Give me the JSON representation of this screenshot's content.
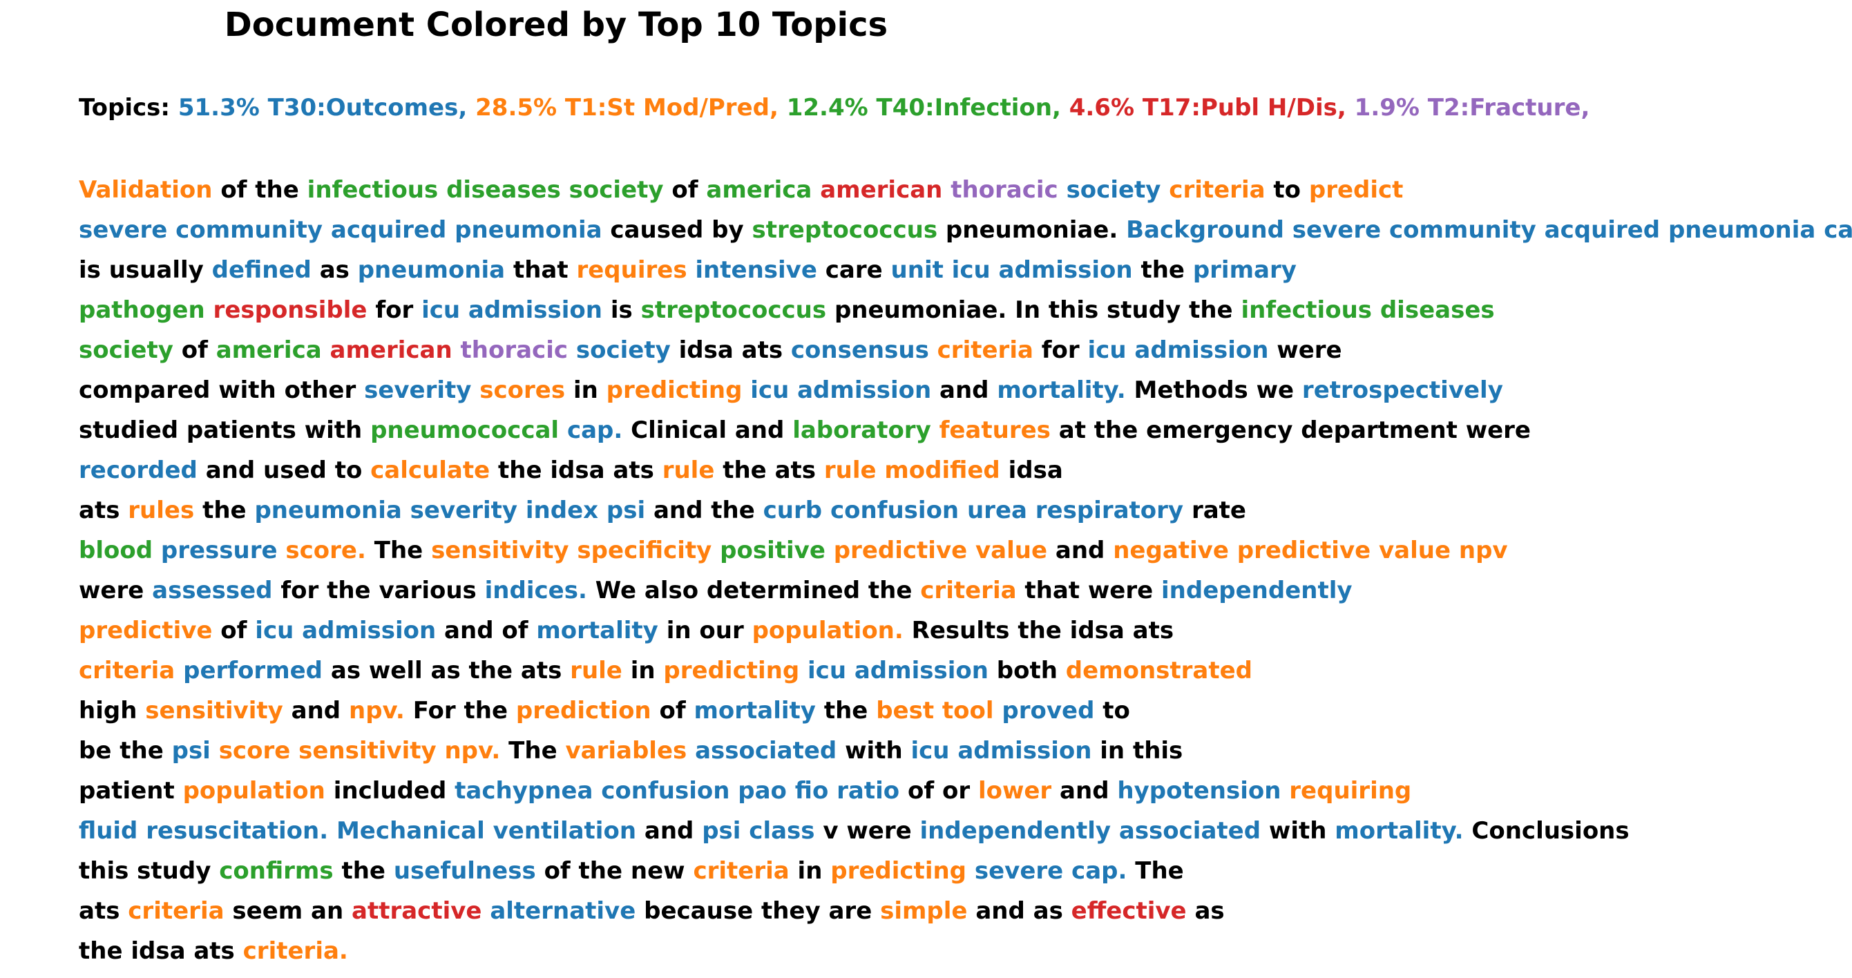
{
  "title": "Document Colored by Top 10 Topics",
  "colors": {
    "T30": "#1f77b4",
    "T1": "#ff7f0e",
    "T40": "#2ca02c",
    "T17": "#d62728",
    "T2": "#9467bd",
    "none": "#000000"
  },
  "topics_label": "Topics:",
  "topics": [
    {
      "key": "T30",
      "text": "51.3% T30:Outcomes,"
    },
    {
      "key": "T1",
      "text": "28.5% T1:St Mod/Pred,"
    },
    {
      "key": "T40",
      "text": "12.4% T40:Infection,"
    },
    {
      "key": "T17",
      "text": "4.6% T17:Publ H/Dis,"
    },
    {
      "key": "T2",
      "text": "1.9% T2:Fracture,"
    }
  ],
  "document_lines": [
    [
      [
        "Validation",
        "T1"
      ],
      [
        "of the",
        "none"
      ],
      [
        "infectious diseases society",
        "T40"
      ],
      [
        "of",
        "none"
      ],
      [
        "america",
        "T40"
      ],
      [
        "american",
        "T17"
      ],
      [
        "thoracic",
        "T2"
      ],
      [
        "society",
        "T30"
      ],
      [
        "criteria",
        "T1"
      ],
      [
        "to",
        "none"
      ],
      [
        "predict",
        "T1"
      ]
    ],
    [
      [
        "severe community acquired pneumonia",
        "T30"
      ],
      [
        "caused by",
        "none"
      ],
      [
        "streptococcus",
        "T40"
      ],
      [
        "pneumoniae.",
        "none"
      ],
      [
        "Background severe community acquired pneumonia cap",
        "T30"
      ]
    ],
    [
      [
        "is usually",
        "none"
      ],
      [
        "defined",
        "T30"
      ],
      [
        "as",
        "none"
      ],
      [
        "pneumonia",
        "T30"
      ],
      [
        "that",
        "none"
      ],
      [
        "requires",
        "T1"
      ],
      [
        "intensive",
        "T30"
      ],
      [
        "care",
        "none"
      ],
      [
        "unit icu admission",
        "T30"
      ],
      [
        "the",
        "none"
      ],
      [
        "primary",
        "T30"
      ]
    ],
    [
      [
        "pathogen",
        "T40"
      ],
      [
        "responsible",
        "T17"
      ],
      [
        "for",
        "none"
      ],
      [
        "icu admission",
        "T30"
      ],
      [
        "is",
        "none"
      ],
      [
        "streptococcus",
        "T40"
      ],
      [
        "pneumoniae. In this study the",
        "none"
      ],
      [
        "infectious diseases",
        "T40"
      ]
    ],
    [
      [
        "society",
        "T40"
      ],
      [
        "of",
        "none"
      ],
      [
        "america",
        "T40"
      ],
      [
        "american",
        "T17"
      ],
      [
        "thoracic",
        "T2"
      ],
      [
        "society",
        "T30"
      ],
      [
        "idsa ats",
        "none"
      ],
      [
        "consensus",
        "T30"
      ],
      [
        "criteria",
        "T1"
      ],
      [
        "for",
        "none"
      ],
      [
        "icu admission",
        "T30"
      ],
      [
        "were",
        "none"
      ]
    ],
    [
      [
        "compared with other",
        "none"
      ],
      [
        "severity",
        "T30"
      ],
      [
        "scores",
        "T1"
      ],
      [
        "in",
        "none"
      ],
      [
        "predicting",
        "T1"
      ],
      [
        "icu admission",
        "T30"
      ],
      [
        "and",
        "none"
      ],
      [
        "mortality.",
        "T30"
      ],
      [
        "Methods we",
        "none"
      ],
      [
        "retrospectively",
        "T30"
      ]
    ],
    [
      [
        "studied patients with",
        "none"
      ],
      [
        "pneumococcal",
        "T40"
      ],
      [
        "cap.",
        "T30"
      ],
      [
        "Clinical and",
        "none"
      ],
      [
        "laboratory",
        "T40"
      ],
      [
        "features",
        "T1"
      ],
      [
        "at the emergency department were",
        "none"
      ]
    ],
    [
      [
        "recorded",
        "T30"
      ],
      [
        "and used to",
        "none"
      ],
      [
        "calculate",
        "T1"
      ],
      [
        "the idsa ats",
        "none"
      ],
      [
        "rule",
        "T1"
      ],
      [
        "the ats",
        "none"
      ],
      [
        "rule modified",
        "T1"
      ],
      [
        "idsa",
        "none"
      ]
    ],
    [
      [
        "ats",
        "none"
      ],
      [
        "rules",
        "T1"
      ],
      [
        "the",
        "none"
      ],
      [
        "pneumonia severity index psi",
        "T30"
      ],
      [
        "and the",
        "none"
      ],
      [
        "curb confusion urea respiratory",
        "T30"
      ],
      [
        "rate",
        "none"
      ]
    ],
    [
      [
        "blood",
        "T40"
      ],
      [
        "pressure",
        "T30"
      ],
      [
        "score.",
        "T1"
      ],
      [
        "The",
        "none"
      ],
      [
        "sensitivity specificity",
        "T1"
      ],
      [
        "positive",
        "T40"
      ],
      [
        "predictive value",
        "T1"
      ],
      [
        "and",
        "none"
      ],
      [
        "negative predictive value npv",
        "T1"
      ]
    ],
    [
      [
        "were",
        "none"
      ],
      [
        "assessed",
        "T30"
      ],
      [
        "for the various",
        "none"
      ],
      [
        "indices.",
        "T30"
      ],
      [
        "We also determined the",
        "none"
      ],
      [
        "criteria",
        "T1"
      ],
      [
        "that were",
        "none"
      ],
      [
        "independently",
        "T30"
      ]
    ],
    [
      [
        "predictive",
        "T1"
      ],
      [
        "of",
        "none"
      ],
      [
        "icu admission",
        "T30"
      ],
      [
        "and of",
        "none"
      ],
      [
        "mortality",
        "T30"
      ],
      [
        "in our",
        "none"
      ],
      [
        "population.",
        "T1"
      ],
      [
        "Results the idsa ats",
        "none"
      ]
    ],
    [
      [
        "criteria",
        "T1"
      ],
      [
        "performed",
        "T30"
      ],
      [
        "as well as the ats",
        "none"
      ],
      [
        "rule",
        "T1"
      ],
      [
        "in",
        "none"
      ],
      [
        "predicting",
        "T1"
      ],
      [
        "icu admission",
        "T30"
      ],
      [
        "both",
        "none"
      ],
      [
        "demonstrated",
        "T1"
      ]
    ],
    [
      [
        "high",
        "none"
      ],
      [
        "sensitivity",
        "T1"
      ],
      [
        "and",
        "none"
      ],
      [
        "npv.",
        "T1"
      ],
      [
        "For the",
        "none"
      ],
      [
        "prediction",
        "T1"
      ],
      [
        "of",
        "none"
      ],
      [
        "mortality",
        "T30"
      ],
      [
        "the",
        "none"
      ],
      [
        "best tool",
        "T1"
      ],
      [
        "proved",
        "T30"
      ],
      [
        "to",
        "none"
      ]
    ],
    [
      [
        "be the",
        "none"
      ],
      [
        "psi",
        "T30"
      ],
      [
        "score sensitivity npv.",
        "T1"
      ],
      [
        "The",
        "none"
      ],
      [
        "variables",
        "T1"
      ],
      [
        "associated",
        "T30"
      ],
      [
        "with",
        "none"
      ],
      [
        "icu admission",
        "T30"
      ],
      [
        "in this",
        "none"
      ]
    ],
    [
      [
        "patient",
        "none"
      ],
      [
        "population",
        "T1"
      ],
      [
        "included",
        "none"
      ],
      [
        "tachypnea confusion pao fio ratio",
        "T30"
      ],
      [
        "of or",
        "none"
      ],
      [
        "lower",
        "T1"
      ],
      [
        "and",
        "none"
      ],
      [
        "hypotension",
        "T30"
      ],
      [
        "requiring",
        "T1"
      ]
    ],
    [
      [
        "fluid resuscitation. Mechanical ventilation",
        "T30"
      ],
      [
        "and",
        "none"
      ],
      [
        "psi class",
        "T30"
      ],
      [
        "v were",
        "none"
      ],
      [
        "independently associated",
        "T30"
      ],
      [
        "with",
        "none"
      ],
      [
        "mortality.",
        "T30"
      ],
      [
        "Conclusions",
        "none"
      ]
    ],
    [
      [
        "this study",
        "none"
      ],
      [
        "confirms",
        "T40"
      ],
      [
        "the",
        "none"
      ],
      [
        "usefulness",
        "T30"
      ],
      [
        "of the new",
        "none"
      ],
      [
        "criteria",
        "T1"
      ],
      [
        "in",
        "none"
      ],
      [
        "predicting",
        "T1"
      ],
      [
        "severe cap.",
        "T30"
      ],
      [
        "The",
        "none"
      ]
    ],
    [
      [
        "ats",
        "none"
      ],
      [
        "criteria",
        "T1"
      ],
      [
        "seem an",
        "none"
      ],
      [
        "attractive",
        "T17"
      ],
      [
        "alternative",
        "T30"
      ],
      [
        "because they are",
        "none"
      ],
      [
        "simple",
        "T1"
      ],
      [
        "and as",
        "none"
      ],
      [
        "effective",
        "T17"
      ],
      [
        "as",
        "none"
      ]
    ],
    [
      [
        "the idsa ats",
        "none"
      ],
      [
        "criteria.",
        "T1"
      ]
    ]
  ]
}
